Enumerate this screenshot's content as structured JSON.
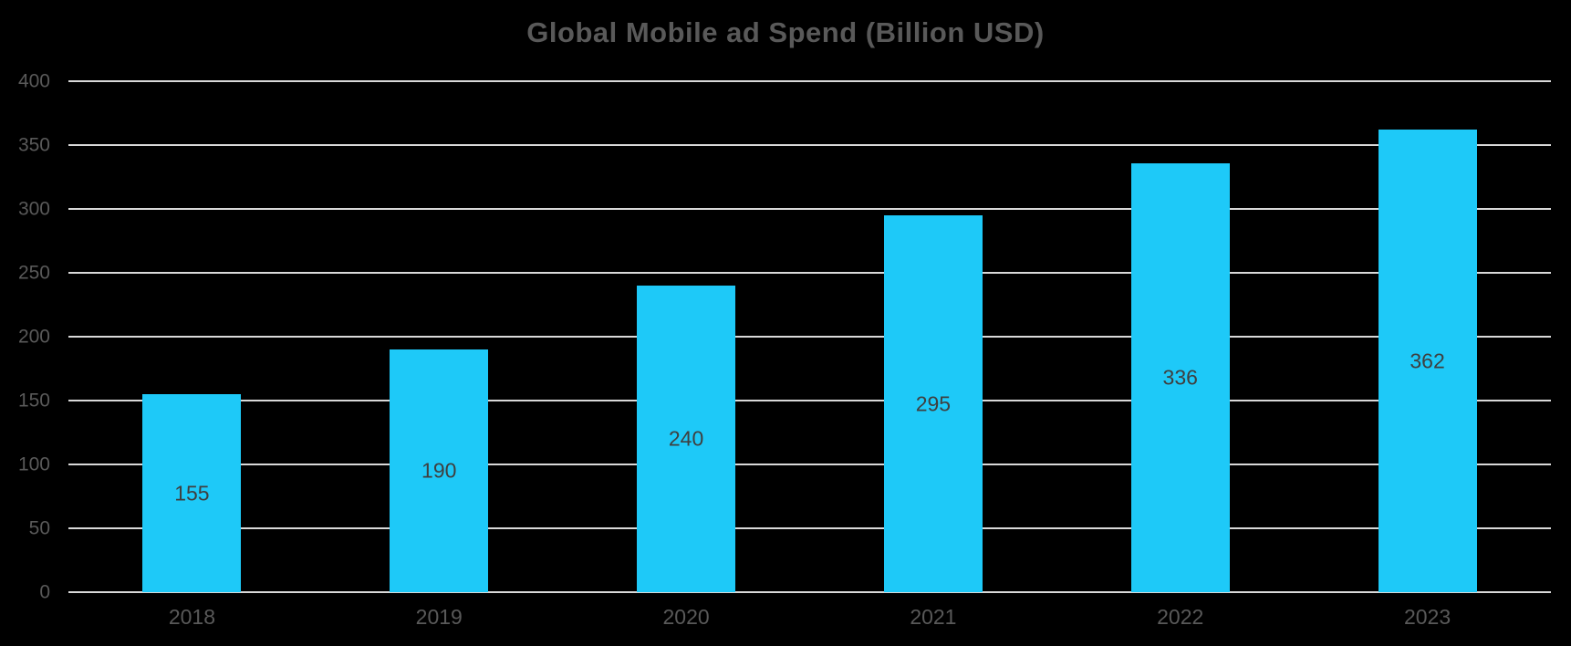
{
  "chart_data": {
    "type": "bar",
    "title": "Global Mobile ad Spend (Billion USD)",
    "categories": [
      "2018",
      "2019",
      "2020",
      "2021",
      "2022",
      "2023"
    ],
    "values": [
      155,
      190,
      240,
      295,
      336,
      362
    ],
    "xlabel": "",
    "ylabel": "",
    "yticks": [
      0,
      50,
      100,
      150,
      200,
      250,
      300,
      350,
      400
    ],
    "ylim": [
      0,
      400
    ],
    "grid": "horizontal",
    "legend": "none",
    "data_label_position": "inside-center",
    "colors": {
      "background": "#000000",
      "bar": "#1ec9f8",
      "gridline": "#d9d9d9",
      "title": "#595959",
      "tick_label": "#595959",
      "data_label": "#3f3f3f"
    }
  }
}
